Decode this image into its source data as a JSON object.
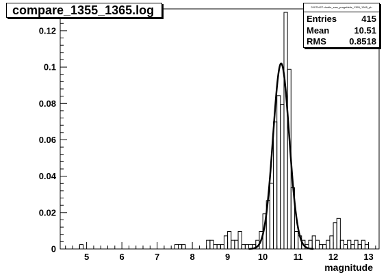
{
  "title": "compare_1355_1365.log",
  "stats": {
    "name": "20070427-dualkr_saw_pragefuids_1355_1365_ph",
    "entries_label": "Entries",
    "entries_value": "415",
    "mean_label": "Mean",
    "mean_value": "10.51",
    "rms_label": "RMS",
    "rms_value": "0.8518"
  },
  "chart_data": {
    "type": "histogram",
    "xlabel": "magnitude",
    "ylabel": "",
    "xlim": [
      4.25,
      13.3
    ],
    "ylim": [
      0,
      0.132
    ],
    "xticks": [
      5,
      6,
      7,
      8,
      9,
      10,
      11,
      12,
      13
    ],
    "yticks": [
      0,
      0.02,
      0.04,
      0.06,
      0.08,
      0.1,
      0.12
    ],
    "bin_width": 0.1,
    "bins": [
      [
        4.8,
        0.0024
      ],
      [
        7.5,
        0.0024
      ],
      [
        7.6,
        0.0024
      ],
      [
        7.7,
        0.0024
      ],
      [
        8.4,
        0.0048
      ],
      [
        8.5,
        0.0048
      ],
      [
        8.6,
        0.0024
      ],
      [
        8.7,
        0.0024
      ],
      [
        8.8,
        0.0024
      ],
      [
        8.9,
        0.0072
      ],
      [
        9.0,
        0.0096
      ],
      [
        9.1,
        0.0048
      ],
      [
        9.2,
        0.0048
      ],
      [
        9.3,
        0.0096
      ],
      [
        9.4,
        0.0024
      ],
      [
        9.5,
        0.0024
      ],
      [
        9.6,
        0.0024
      ],
      [
        9.7,
        0.0024
      ],
      [
        9.8,
        0.0048
      ],
      [
        9.9,
        0.0096
      ],
      [
        10.0,
        0.0193
      ],
      [
        10.1,
        0.0265
      ],
      [
        10.2,
        0.0361
      ],
      [
        10.3,
        0.0699
      ],
      [
        10.4,
        0.0843
      ],
      [
        10.5,
        0.0795
      ],
      [
        10.6,
        0.1301
      ],
      [
        10.7,
        0.0988
      ],
      [
        10.8,
        0.0337
      ],
      [
        10.9,
        0.0096
      ],
      [
        11.0,
        0.0072
      ],
      [
        11.1,
        0.0048
      ],
      [
        11.2,
        0.0024
      ],
      [
        11.3,
        0.0048
      ],
      [
        11.4,
        0.0072
      ],
      [
        11.5,
        0.0048
      ],
      [
        11.6,
        0.0024
      ],
      [
        11.7,
        0.0024
      ],
      [
        11.8,
        0.0048
      ],
      [
        11.9,
        0.0072
      ],
      [
        12.0,
        0.0144
      ],
      [
        12.1,
        0.0168
      ],
      [
        12.2,
        0.0048
      ],
      [
        12.3,
        0.0024
      ],
      [
        12.4,
        0.0048
      ],
      [
        12.5,
        0.0024
      ],
      [
        12.6,
        0.0048
      ],
      [
        12.7,
        0.0024
      ],
      [
        12.8,
        0.0048
      ],
      [
        12.9,
        0.0024
      ]
    ],
    "fit": {
      "type": "gaussian",
      "amplitude": 0.102,
      "mean": 10.52,
      "sigma": 0.23
    }
  }
}
